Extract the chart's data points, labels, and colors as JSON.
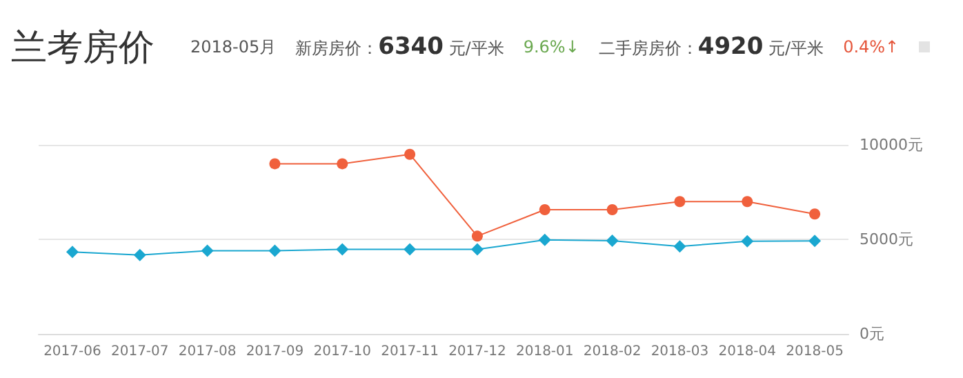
{
  "chart_data": {
    "type": "line",
    "title": "兰考房价",
    "annotations": [
      "2018-05月",
      "新房房价：6340 元/平米",
      "9.6%↓",
      "二手房房价：4920 元/平米",
      "0.4%↑"
    ],
    "categories": [
      "2017-06",
      "2017-07",
      "2017-08",
      "2017-09",
      "2017-10",
      "2017-11",
      "2017-12",
      "2018-01",
      "2018-02",
      "2018-03",
      "2018-04",
      "2018-05"
    ],
    "series": [
      {
        "color": "#f0603c",
        "marker": "circle",
        "values": [
          null,
          null,
          null,
          9000,
          9000,
          9500,
          5170,
          6570,
          6570,
          7000,
          7000,
          6340
        ]
      },
      {
        "color": "#1aa7d0",
        "marker": "diamond",
        "values": [
          4330,
          4170,
          4400,
          4400,
          4470,
          4470,
          4470,
          4970,
          4930,
          4630,
          4900,
          4920
        ]
      }
    ],
    "ylim": [
      0,
      10000
    ],
    "yticks": [
      {
        "value": 0,
        "label": "0元"
      },
      {
        "value": 5000,
        "label": "5000元"
      },
      {
        "value": 10000,
        "label": "10000元"
      }
    ],
    "grid": "y"
  }
}
